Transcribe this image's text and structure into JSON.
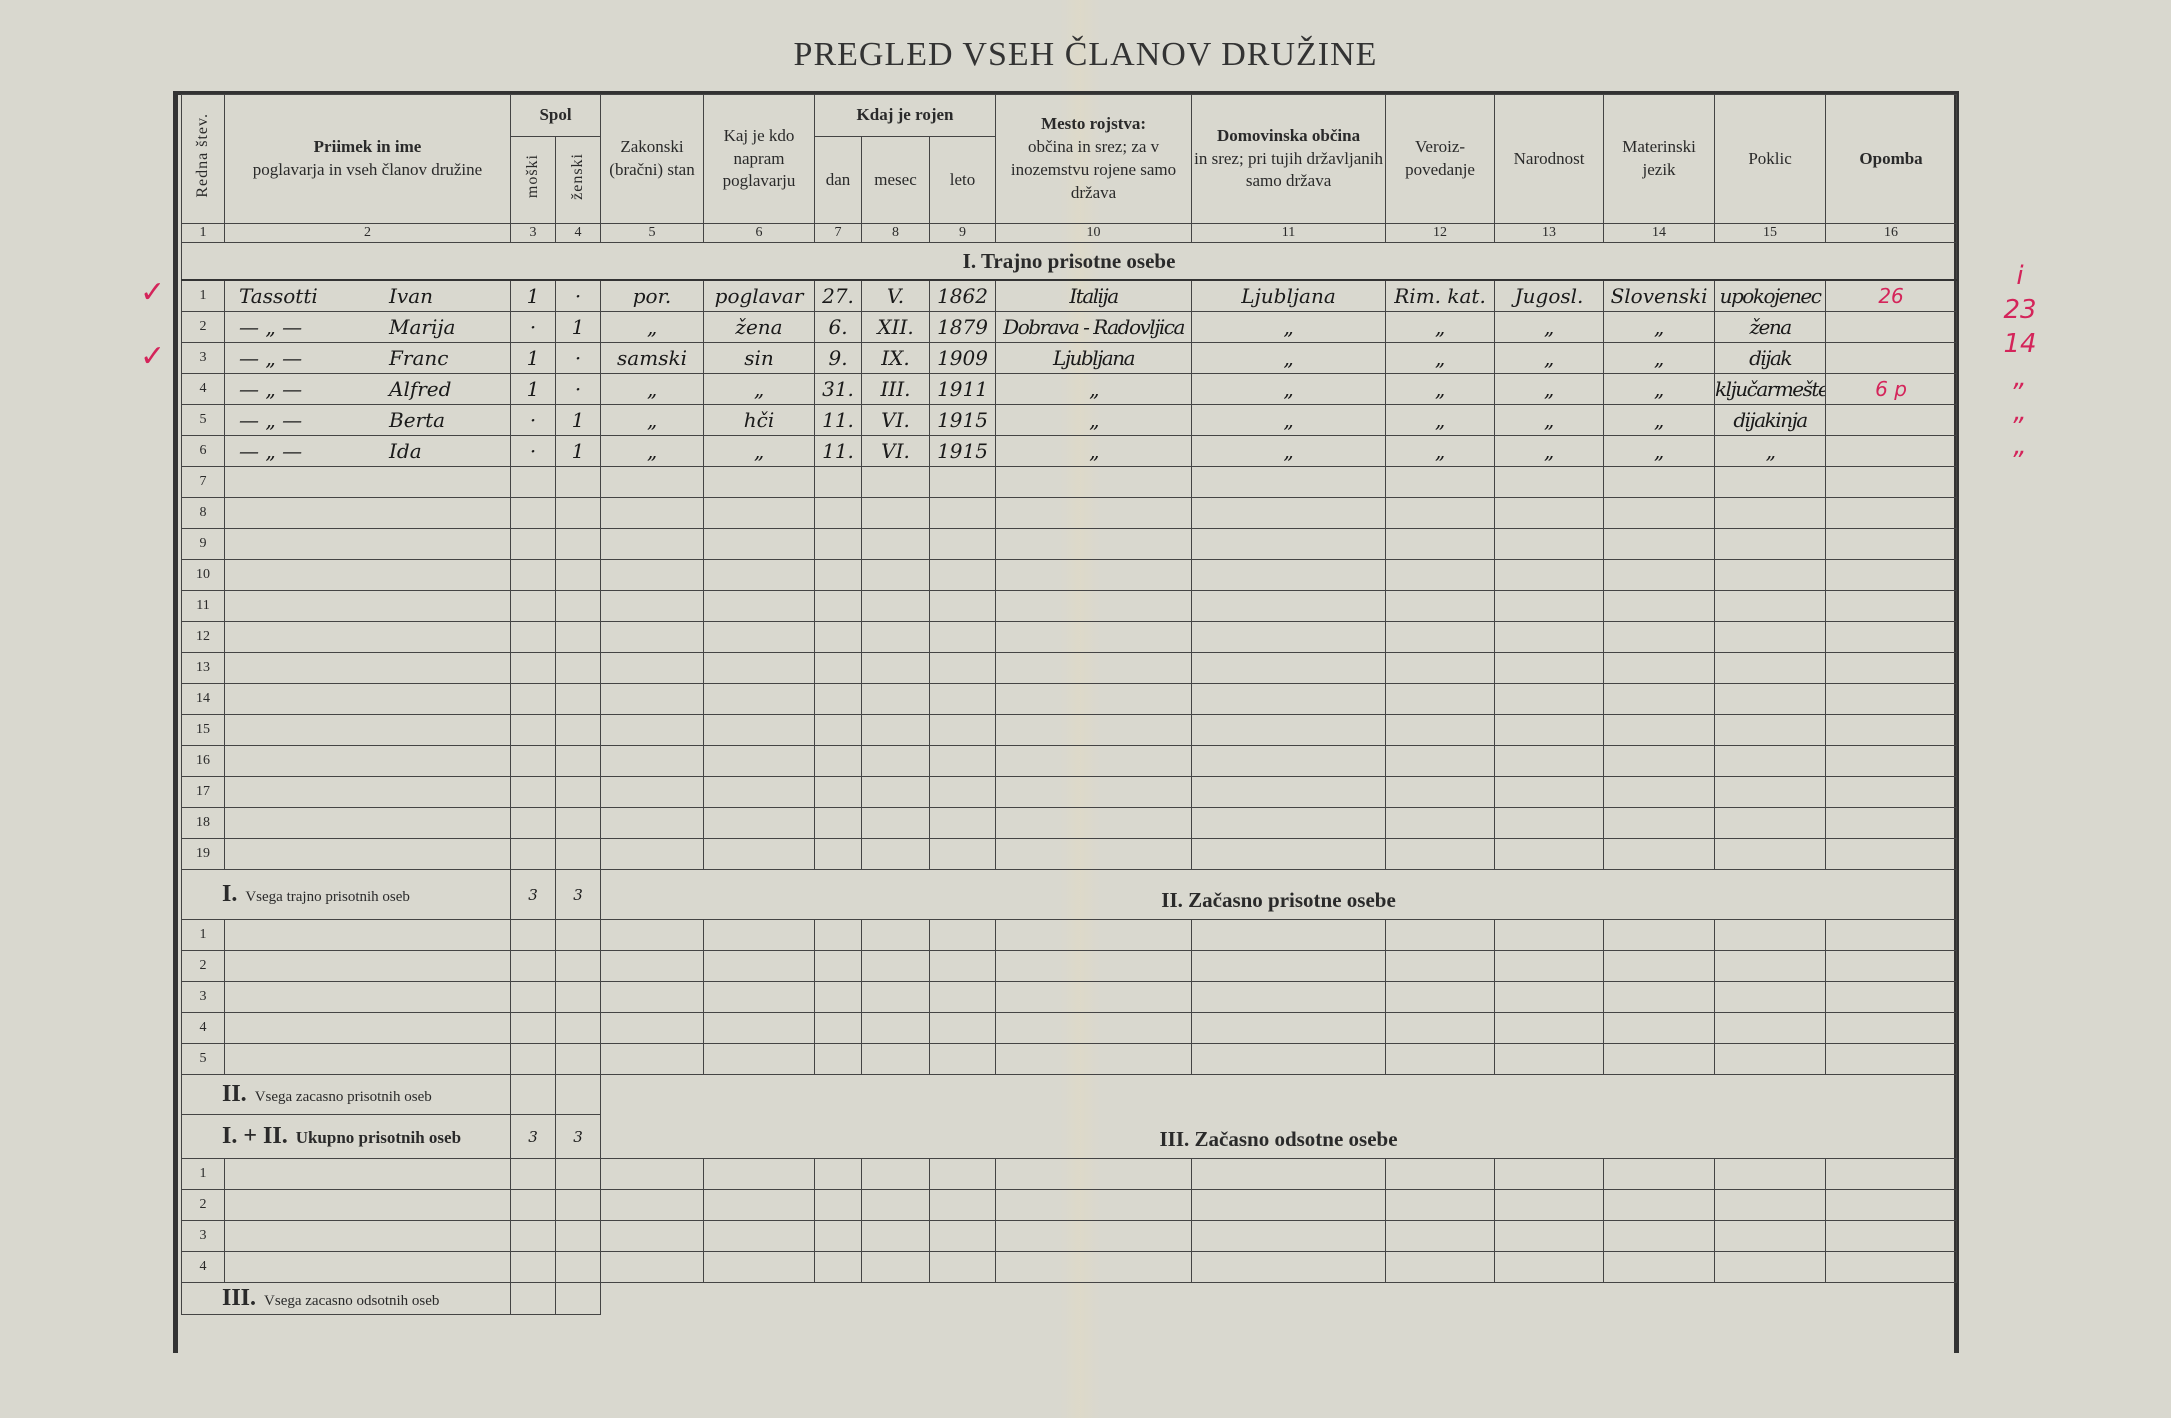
{
  "title": "PREGLED VSEH ČLANOV DRUŽINE",
  "headers": {
    "redna": "Redna štev.",
    "priimek_main": "Priimek in ime",
    "priimek_sub": "poglavarja in vseh članov družine",
    "spol": "Spol",
    "moski": "moški",
    "zenski": "ženski",
    "zakonski": "Zakonski (bračni) stan",
    "kaj": "Kaj je kdo napram poglavarju",
    "kdaj": "Kdaj je rojen",
    "dan": "dan",
    "mesec": "mesec",
    "leto": "leto",
    "mesto_main": "Mesto rojstva:",
    "mesto_sub": "občina in srez; za v inozemstvu rojene samo država",
    "domov_main": "Domovinska občina",
    "domov_sub": "in srez; pri tujih državljanih samo država",
    "vera": "Veroiz-povedanje",
    "narodnost": "Narodnost",
    "jezik": "Materinski jezik",
    "poklic": "Poklic",
    "opomba": "Opomba",
    "numbers": [
      "1",
      "2",
      "3",
      "4",
      "5",
      "6",
      "7",
      "8",
      "9",
      "10",
      "11",
      "12",
      "13",
      "14",
      "15",
      "16"
    ]
  },
  "section1": {
    "title": "I. Trajno prisotne osebe",
    "rows": [
      {
        "no": "1",
        "surname": "Tassotti",
        "name": "Ivan",
        "m": "1",
        "z": "·",
        "stan": "por.",
        "rel": "poglavar",
        "dan": "27.",
        "mesec": "V.",
        "leto": "1862",
        "mesto": "Italija",
        "domov": "Ljubljana",
        "vera": "Rim. kat.",
        "narod": "Jugosl.",
        "jezik": "Slovenski",
        "poklic": "upokojenec",
        "opomba": "26"
      },
      {
        "no": "2",
        "surname": "— „ —",
        "name": "Marija",
        "m": "·",
        "z": "1",
        "stan": "„",
        "rel": "žena",
        "dan": "6.",
        "mesec": "XII.",
        "leto": "1879",
        "mesto": "Dobrava - Radovljica",
        "domov": "„",
        "vera": "„",
        "narod": "„",
        "jezik": "„",
        "poklic": "žena",
        "opomba": ""
      },
      {
        "no": "3",
        "surname": "— „ —",
        "name": "Franc",
        "m": "1",
        "z": "·",
        "stan": "samski",
        "rel": "sin",
        "dan": "9.",
        "mesec": "IX.",
        "leto": "1909",
        "mesto": "Ljubljana",
        "domov": "„",
        "vera": "„",
        "narod": "„",
        "jezik": "„",
        "poklic": "dijak",
        "opomba": ""
      },
      {
        "no": "4",
        "surname": "— „ —",
        "name": "Alfred",
        "m": "1",
        "z": "·",
        "stan": "„",
        "rel": "„",
        "dan": "31.",
        "mesec": "III.",
        "leto": "1911",
        "mesto": "„",
        "domov": "„",
        "vera": "„",
        "narod": "„",
        "jezik": "„",
        "poklic": "ključarmešter",
        "opomba": "6 p"
      },
      {
        "no": "5",
        "surname": "— „ —",
        "name": "Berta",
        "m": "·",
        "z": "1",
        "stan": "„",
        "rel": "hči",
        "dan": "11.",
        "mesec": "VI.",
        "leto": "1915",
        "mesto": "„",
        "domov": "„",
        "vera": "„",
        "narod": "„",
        "jezik": "„",
        "poklic": "dijakinja",
        "opomba": ""
      },
      {
        "no": "6",
        "surname": "— „ —",
        "name": "Ida",
        "m": "·",
        "z": "1",
        "stan": "„",
        "rel": "„",
        "dan": "11.",
        "mesec": "VI.",
        "leto": "1915",
        "mesto": "„",
        "domov": "„",
        "vera": "„",
        "narod": "„",
        "jezik": "„",
        "poklic": "„",
        "opomba": ""
      }
    ],
    "empty_rows": [
      "7",
      "8",
      "9",
      "10",
      "11",
      "12",
      "13",
      "14",
      "15",
      "16",
      "17",
      "18",
      "19"
    ],
    "total_label_num": "I.",
    "total_label": "Vsega trajno prisotnih oseb",
    "total_m": "3",
    "total_z": "3"
  },
  "section2": {
    "title": "II. Začasno prisotne osebe",
    "rows": [
      "1",
      "2",
      "3",
      "4",
      "5"
    ],
    "total_label_num": "II.",
    "total_label": "Vsega zacasno prisotnih oseb",
    "total_m": "",
    "total_z": ""
  },
  "combined": {
    "label_num": "I. + II.",
    "label": "Ukupno prisotnih oseb",
    "m": "3",
    "z": "3"
  },
  "section3": {
    "title": "III. Začasno odsotne osebe",
    "rows": [
      "1",
      "2",
      "3",
      "4"
    ],
    "total_label_num": "III.",
    "total_label": "Vsega zacasno odsotnih oseb"
  },
  "margin_notes": [
    "i",
    "23",
    "14",
    "„",
    "„",
    "„"
  ],
  "colors": {
    "ink_red": "#d4245a",
    "paper": "#d9d8cf"
  }
}
